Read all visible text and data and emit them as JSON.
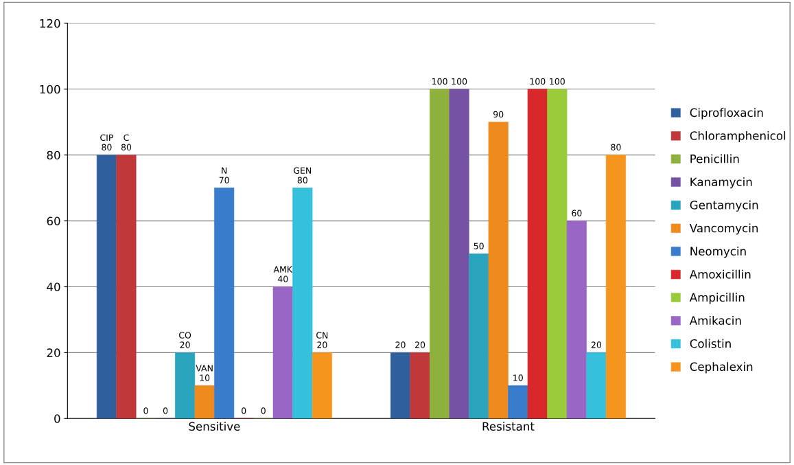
{
  "chart_data": {
    "type": "bar",
    "categories": [
      "Sensitive",
      "Resistant"
    ],
    "series": [
      {
        "name": "Ciprofloxacin",
        "color": "#2f5f9c",
        "values": [
          80,
          20
        ],
        "value_labels": [
          "CIP\n80",
          "20"
        ]
      },
      {
        "name": "Chloramphenicol",
        "color": "#c0383a",
        "values": [
          80,
          20
        ],
        "value_labels": [
          "C\n80",
          "20"
        ]
      },
      {
        "name": "Penicillin",
        "color": "#8db13c",
        "values": [
          0,
          100
        ],
        "value_labels": [
          "0",
          "100"
        ]
      },
      {
        "name": "Kanamycin",
        "color": "#7552a3",
        "values": [
          0,
          100
        ],
        "value_labels": [
          "0",
          "100"
        ]
      },
      {
        "name": "Gentamycin",
        "color": "#2aa3bd",
        "values": [
          20,
          50
        ],
        "value_labels": [
          "CO\n20",
          "50"
        ]
      },
      {
        "name": "Vancomycin",
        "color": "#ef8a1f",
        "values": [
          10,
          90
        ],
        "value_labels": [
          "VAN\n10",
          "90"
        ]
      },
      {
        "name": "Neomycin",
        "color": "#3a7ccc",
        "values": [
          70,
          10
        ],
        "value_labels": [
          "N\n70",
          "10"
        ]
      },
      {
        "name": "Amoxicillin",
        "color": "#d8282c",
        "values": [
          0,
          100
        ],
        "value_labels": [
          "0",
          "100"
        ]
      },
      {
        "name": "Ampicillin",
        "color": "#9acb3a",
        "values": [
          0,
          100
        ],
        "value_labels": [
          "0",
          "100"
        ]
      },
      {
        "name": "Amikacin",
        "color": "#9a66c6",
        "values": [
          40,
          60
        ],
        "value_labels": [
          "AMK\n40",
          "60"
        ]
      },
      {
        "name": "Colistin",
        "color": "#35c0dc",
        "values": [
          70,
          20
        ],
        "value_labels": [
          "GEN\n80",
          "20"
        ]
      },
      {
        "name": "Cephalexin",
        "color": "#f6951e",
        "values": [
          20,
          80
        ],
        "value_labels": [
          "CN\n20",
          "80"
        ]
      }
    ],
    "ylim": [
      0,
      120
    ],
    "yticks": [
      0,
      20,
      40,
      60,
      80,
      100,
      120
    ],
    "grid": "y",
    "legend": "right"
  }
}
